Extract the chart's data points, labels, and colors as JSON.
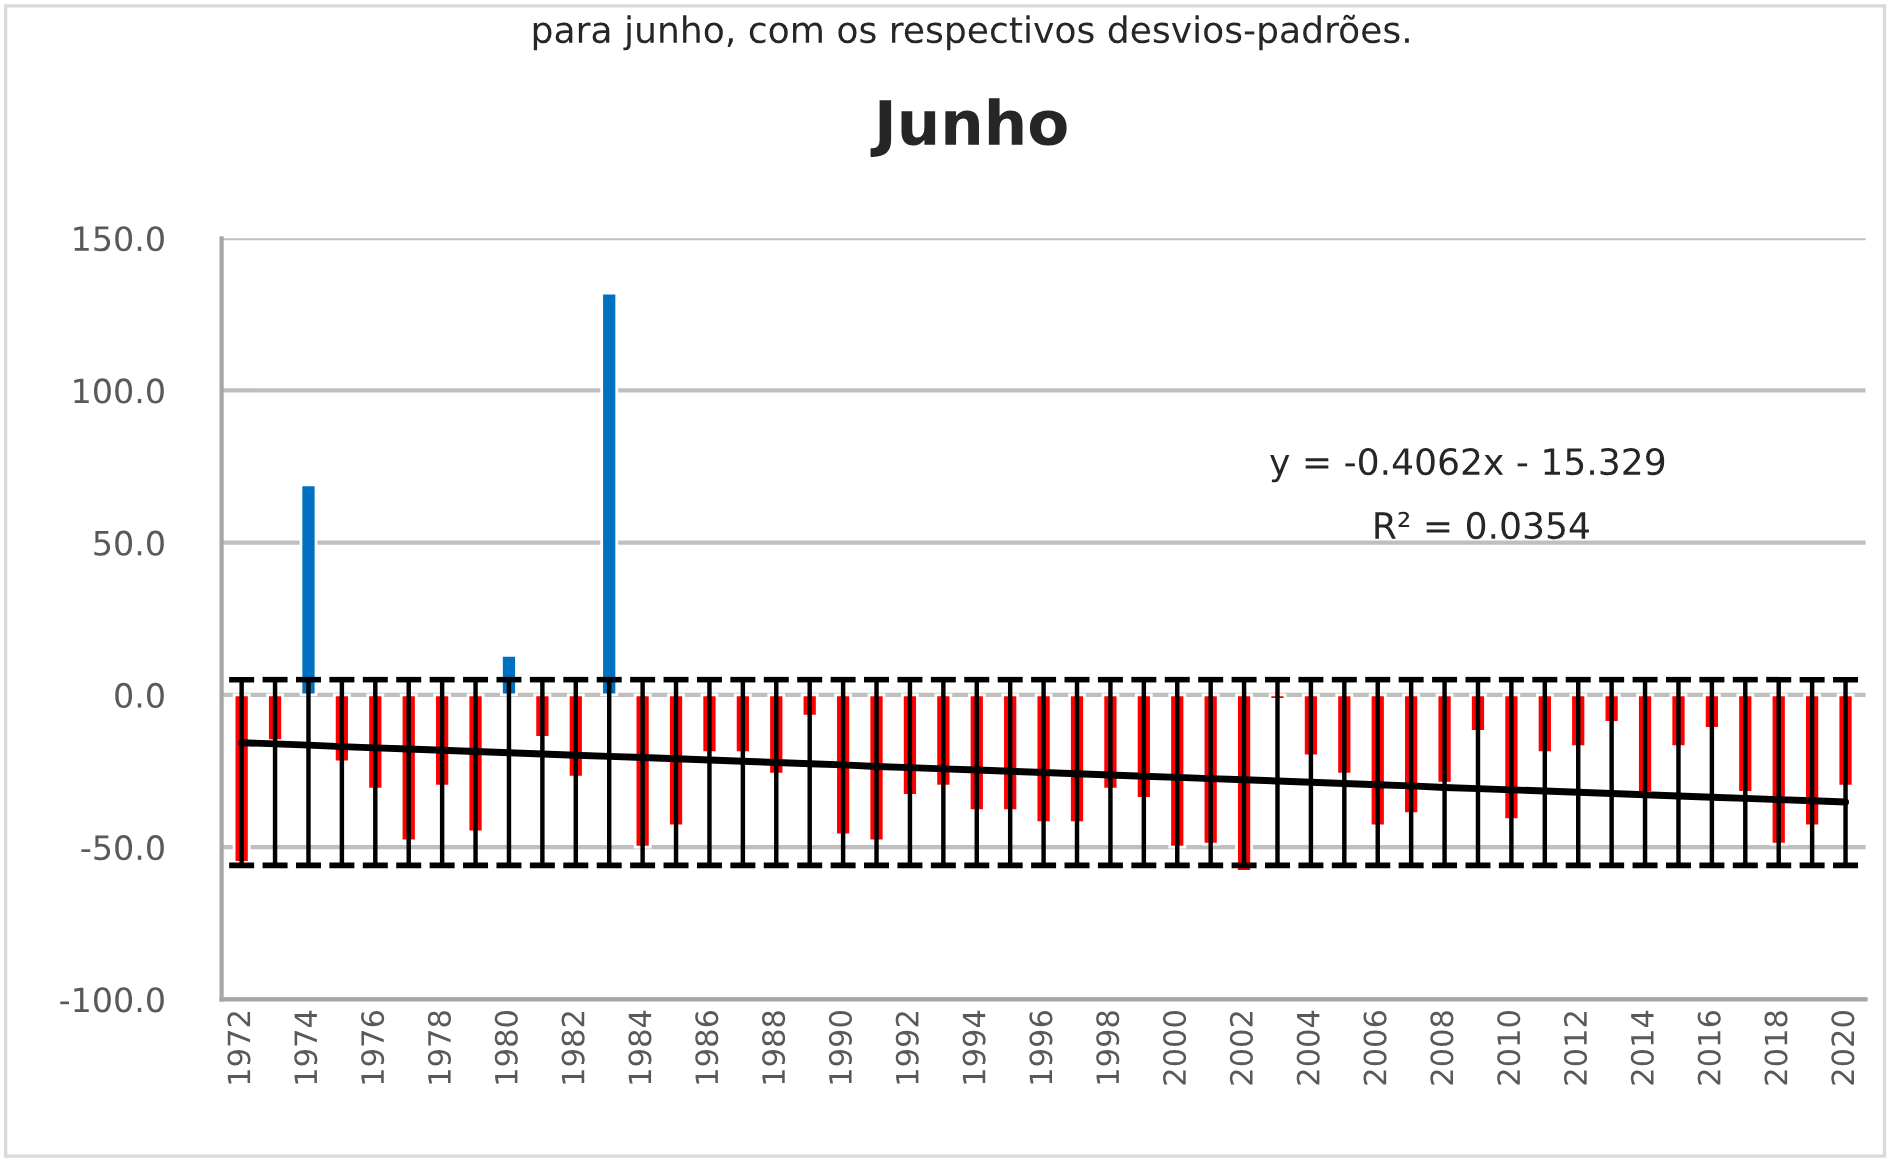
{
  "chart_data": {
    "type": "bar",
    "title": "Junho",
    "categories": [
      "1972",
      null,
      "1974",
      null,
      "1976",
      null,
      "1978",
      null,
      "1980",
      null,
      "1982",
      null,
      "1984",
      null,
      "1986",
      null,
      "1988",
      null,
      "1990",
      null,
      "1992",
      null,
      "1994",
      null,
      "1996",
      null,
      "1998",
      null,
      "2000",
      null,
      "2002",
      null,
      "2004",
      null,
      "2006",
      null,
      "2008",
      null,
      "2010",
      null,
      "2012",
      null,
      "2014",
      null,
      "2016",
      null,
      "2018",
      null,
      "2020"
    ],
    "series": [
      {
        "values": [
          -55,
          -15,
          69,
          -22,
          -31,
          -48,
          -30,
          -45,
          13,
          -14,
          -27,
          132,
          -50,
          -43,
          -19,
          -19,
          -26,
          -7,
          -46,
          -48,
          -33,
          -30,
          -38,
          -38,
          -42,
          -42,
          -31,
          -34,
          -50,
          -49,
          -58,
          -1.5,
          -20,
          -26,
          -43,
          -39,
          -29,
          -12,
          -41,
          -19,
          -17,
          -9,
          -32,
          -17,
          -11,
          -32,
          -49,
          -43,
          -30
        ],
        "colors": [
          "#ff0000",
          "#ff0000",
          "#0070c0",
          "#ff0000",
          "#ff0000",
          "#ff0000",
          "#ff0000",
          "#ff0000",
          "#0070c0",
          "#ff0000",
          "#ff0000",
          "#0070c0",
          "#ff0000",
          "#ff0000",
          "#ff0000",
          "#ff0000",
          "#ff0000",
          "#ff0000",
          "#ff0000",
          "#ff0000",
          "#ff0000",
          "#ff0000",
          "#ff0000",
          "#ff0000",
          "#ff0000",
          "#ff0000",
          "#ff0000",
          "#ff0000",
          "#ff0000",
          "#ff0000",
          "#ff0000",
          "#ff0000",
          "#ff0000",
          "#ff0000",
          "#ff0000",
          "#ff0000",
          "#ff0000",
          "#ff0000",
          "#ff0000",
          "#ff0000",
          "#ff0000",
          "#ff0000",
          "#ff0000",
          "#ff0000",
          "#ff0000",
          "#ff0000",
          "#ff0000",
          "#ff0000",
          "#ff0000"
        ],
        "errors": [
          [
            -56,
            5
          ],
          [
            -56,
            5
          ],
          [
            -56,
            5
          ],
          [
            -56,
            5
          ],
          [
            -56,
            5
          ],
          [
            -56,
            5
          ],
          [
            -56,
            5
          ],
          [
            -56,
            5
          ],
          [
            -56,
            5
          ],
          [
            -56,
            5
          ],
          [
            -56,
            5
          ],
          [
            -56,
            5
          ],
          [
            -56,
            5
          ],
          [
            -56,
            5
          ],
          [
            -56,
            5
          ],
          [
            -56,
            5
          ],
          [
            -56,
            5
          ],
          [
            -56,
            5
          ],
          [
            -56,
            5
          ],
          [
            -56,
            5
          ],
          [
            -56,
            5
          ],
          [
            -56,
            5
          ],
          [
            -56,
            5
          ],
          [
            -56,
            5
          ],
          [
            -56,
            5
          ],
          [
            -56,
            5
          ],
          [
            -56,
            5
          ],
          [
            -56,
            5
          ],
          [
            -56,
            5
          ],
          [
            -56,
            5
          ],
          [
            -56,
            5
          ],
          [
            -56,
            5
          ],
          [
            -56,
            5
          ],
          [
            -56,
            5
          ],
          [
            -56,
            5
          ],
          [
            -56,
            5
          ],
          [
            -56,
            5
          ],
          [
            -56,
            5
          ],
          [
            -56,
            5
          ],
          [
            -56,
            5
          ],
          [
            -56,
            5
          ],
          [
            -56,
            5
          ],
          [
            -56,
            5
          ],
          [
            -56,
            5
          ],
          [
            -56,
            5
          ],
          [
            -56,
            5
          ],
          [
            -56,
            5
          ],
          [
            -56,
            5
          ],
          [
            -56,
            5
          ]
        ]
      },
      {
        "type": "line",
        "color": "#000000",
        "values": [
          -15.7,
          -16.1,
          -16.5,
          -17.0,
          -17.4,
          -17.8,
          -18.2,
          -18.6,
          -19.0,
          -19.4,
          -19.8,
          -20.2,
          -20.6,
          -21.0,
          -21.4,
          -21.8,
          -22.2,
          -22.6,
          -23.0,
          -23.5,
          -23.9,
          -24.3,
          -24.7,
          -25.1,
          -25.5,
          -25.9,
          -26.3,
          -26.7,
          -27.1,
          -27.5,
          -27.9,
          -28.3,
          -28.7,
          -29.1,
          -29.5,
          -29.9,
          -30.4,
          -30.8,
          -31.2,
          -31.6,
          -32.0,
          -32.4,
          -32.8,
          -33.2,
          -33.6,
          -34.0,
          -34.4,
          -34.8,
          -35.2
        ]
      }
    ],
    "ylim": [
      -100,
      150
    ],
    "yticks": [
      {
        "value": -100,
        "label": "-100.0"
      },
      {
        "value": -50,
        "label": "-50.0"
      },
      {
        "value": 0,
        "label": "0.0"
      },
      {
        "value": 50,
        "label": "50.0"
      },
      {
        "value": 100,
        "label": "100.0"
      },
      {
        "value": 150,
        "label": "150.0"
      }
    ],
    "grid": "y",
    "legend": false,
    "annotations": [
      "para junho, com os respectivos desvios-padrões.",
      "y = -0.4062x - 15.329",
      "R² = 0.0354"
    ]
  }
}
